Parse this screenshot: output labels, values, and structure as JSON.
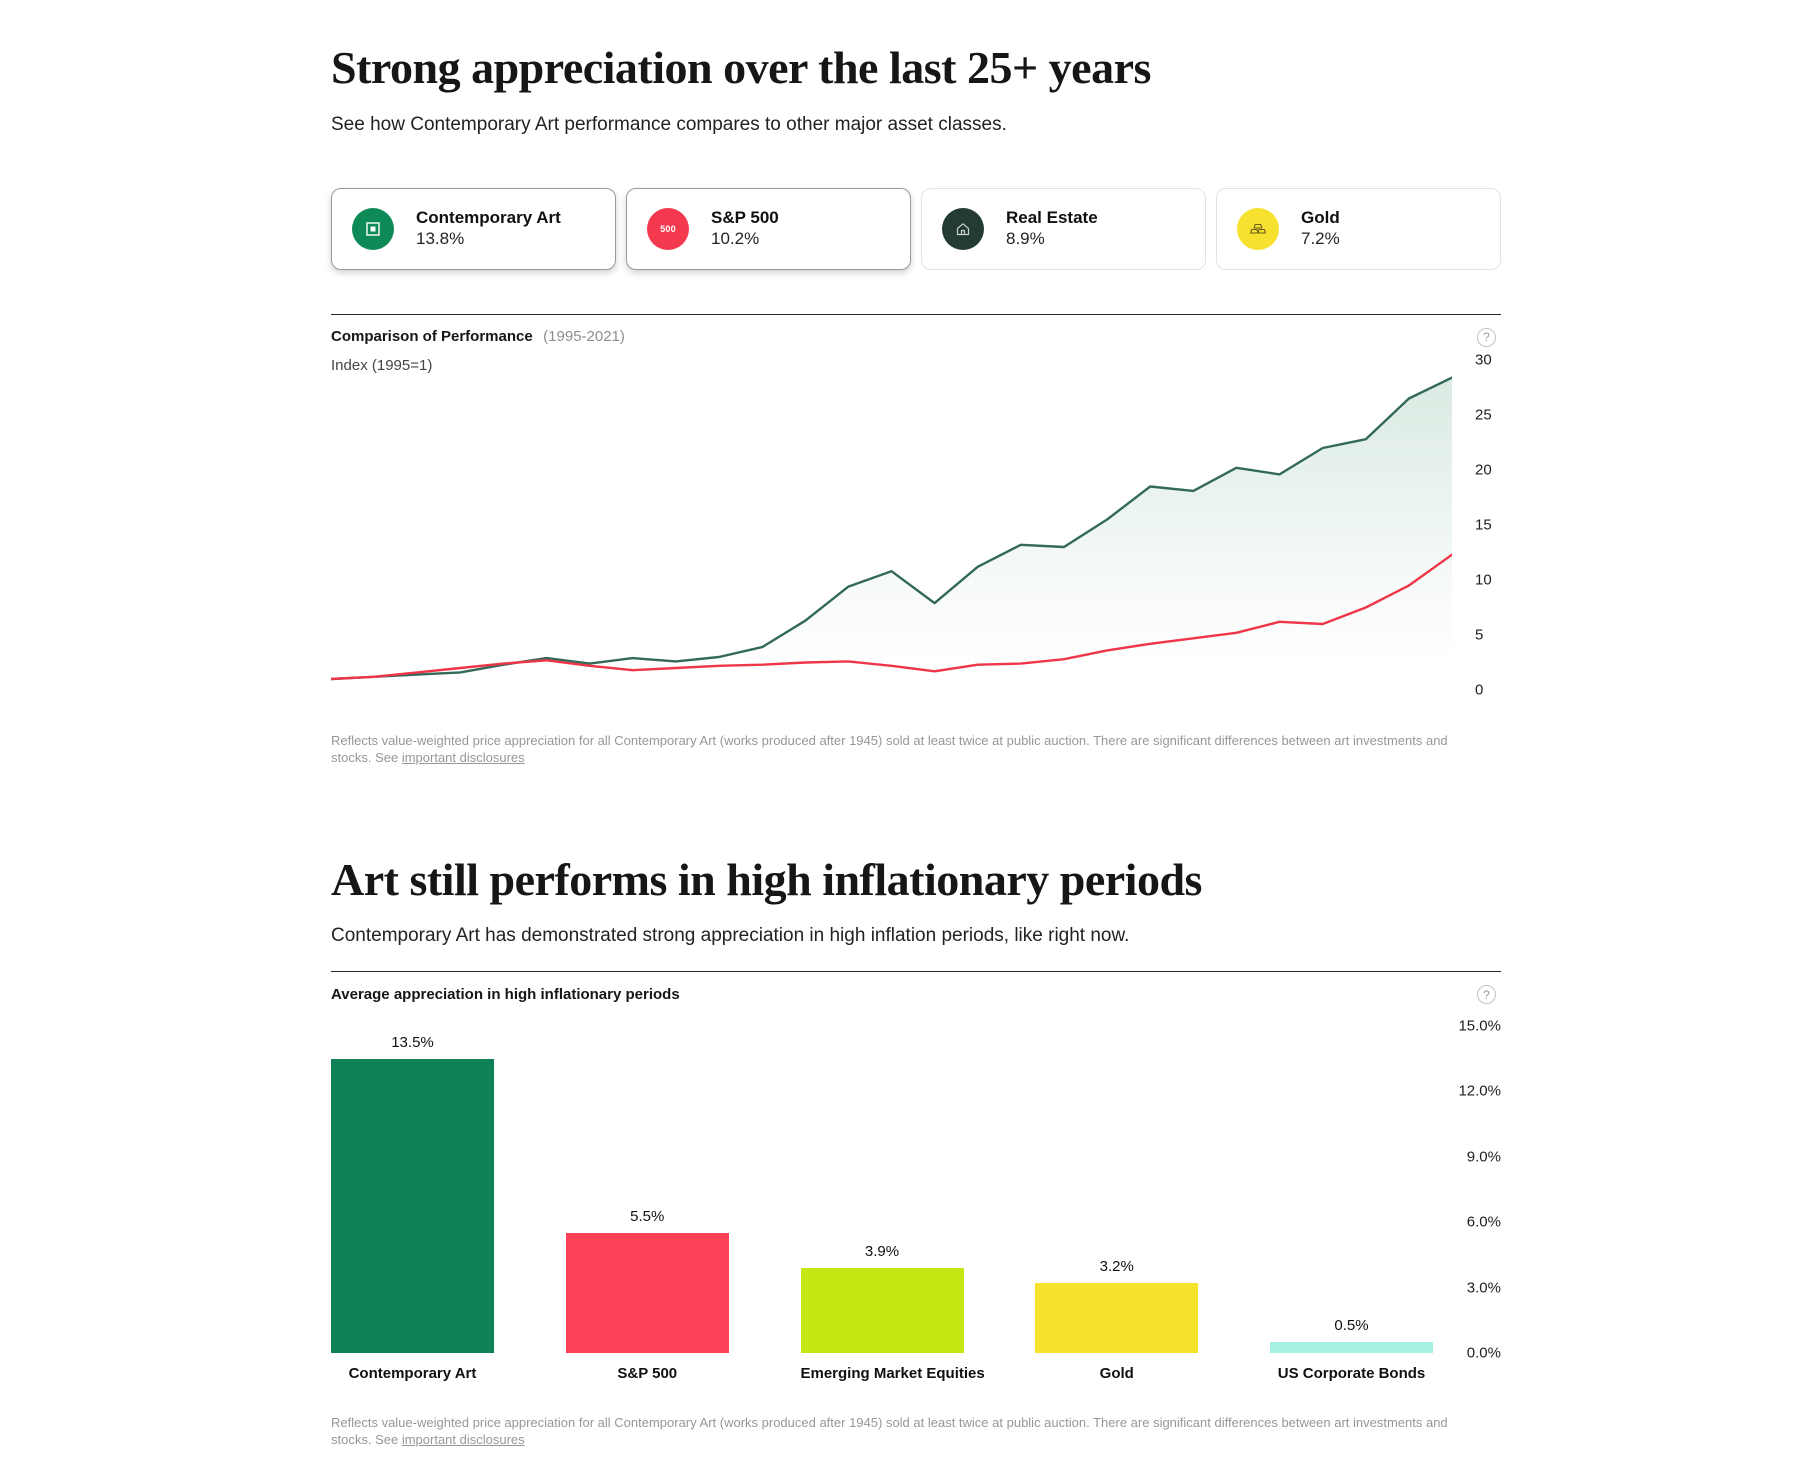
{
  "section_performance": {
    "title": "Strong appreciation over the last 25+ years",
    "subtitle": "See how Contemporary Art performance compares to other major asset classes.",
    "cards": [
      {
        "label": "Contemporary Art",
        "value": "13.8%",
        "icon": "art-frame-icon",
        "icon_bg": "#0E8A57",
        "selected": true
      },
      {
        "label": "S&P 500",
        "value": "10.2%",
        "icon": "sp500-badge-icon",
        "icon_bg": "#F4394F",
        "icon_text": "500",
        "selected": true
      },
      {
        "label": "Real Estate",
        "value": "8.9%",
        "icon": "house-icon",
        "icon_bg": "#243B31",
        "selected": false
      },
      {
        "label": "Gold",
        "value": "7.2%",
        "icon": "gold-bars-icon",
        "icon_bg": "#F6E12E",
        "selected": false
      }
    ],
    "chart_header": {
      "title": "Comparison of Performance",
      "range": "(1995-2021)",
      "axis_note": "Index (1995=1)",
      "help_icon": "?"
    },
    "disclosure": {
      "text": "Reflects value-weighted price appreciation for all Contemporary Art (works produced after 1945) sold at least twice at public auction. There are significant differences between art investments and stocks. See",
      "link_text": "important disclosures"
    }
  },
  "section_inflation": {
    "title": "Art still performs in high inflationary periods",
    "subtitle": "Contemporary Art has demonstrated strong appreciation in high inflation periods, like right now.",
    "chart_header": {
      "title": "Average appreciation in high inflationary periods",
      "help_icon": "?"
    },
    "disclosure": {
      "text": "Reflects value-weighted price appreciation for all Contemporary Art (works produced after 1945) sold at least twice at public auction. There are significant differences between art investments and stocks. See",
      "link_text": "important disclosures"
    }
  },
  "chart_data": [
    {
      "type": "line",
      "title": "Comparison of Performance (1995-2021)",
      "ylabel": "Index (1995=1)",
      "ylim": [
        0,
        30
      ],
      "yticks": [
        0,
        5,
        10,
        15,
        20,
        25,
        30
      ],
      "axis_side": "right",
      "grid": false,
      "legend_position": "none",
      "x": [
        1995,
        1996,
        1997,
        1998,
        1999,
        2000,
        2001,
        2002,
        2003,
        2004,
        2005,
        2006,
        2007,
        2008,
        2009,
        2010,
        2011,
        2012,
        2013,
        2014,
        2015,
        2016,
        2017,
        2018,
        2019,
        2020,
        2021
      ],
      "series": [
        {
          "name": "Contemporary Art",
          "color": "#33695A",
          "area_fill": "#D8E9E0",
          "values": [
            1.0,
            1.2,
            1.4,
            1.6,
            2.3,
            2.9,
            2.4,
            2.9,
            2.6,
            3.0,
            3.9,
            6.3,
            9.4,
            10.8,
            7.9,
            11.2,
            13.2,
            13.0,
            15.5,
            18.5,
            18.1,
            20.2,
            19.6,
            22.0,
            22.8,
            26.5,
            28.4
          ]
        },
        {
          "name": "S&P 500",
          "color": "#EE3648",
          "area_fill": null,
          "values": [
            1.0,
            1.2,
            1.6,
            2.0,
            2.4,
            2.7,
            2.2,
            1.8,
            2.0,
            2.2,
            2.3,
            2.5,
            2.6,
            2.2,
            1.7,
            2.3,
            2.4,
            2.8,
            3.6,
            4.2,
            4.7,
            5.2,
            6.2,
            6.0,
            7.5,
            9.5,
            12.3
          ]
        }
      ]
    },
    {
      "type": "bar",
      "title": "Average appreciation in high inflationary periods",
      "categories": [
        "Contemporary Art",
        "S&P 500",
        "Emerging Market Equities",
        "Gold",
        "US Corporate Bonds"
      ],
      "values": [
        13.5,
        5.5,
        3.9,
        3.2,
        0.5
      ],
      "value_labels": [
        "13.5%",
        "5.5%",
        "3.9%",
        "3.2%",
        "0.5%"
      ],
      "colors": [
        "#0F8157",
        "#FA4156",
        "#C5E815",
        "#F7E22B",
        "#A5F2E3"
      ],
      "ylim": [
        0,
        15
      ],
      "ytick_labels": [
        "15.0%",
        "12.0%",
        "9.0%",
        "6.0%",
        "3.0%",
        "0.0%"
      ],
      "yticks": [
        15,
        12,
        9,
        6,
        3,
        0
      ],
      "axis_side": "right",
      "grid": false
    }
  ]
}
